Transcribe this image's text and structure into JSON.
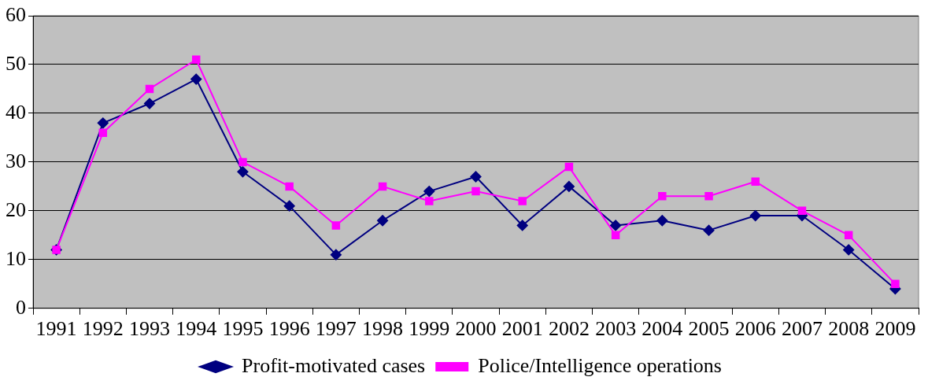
{
  "chart_data": {
    "type": "line",
    "categories": [
      "1991",
      "1992",
      "1993",
      "1994",
      "1995",
      "1996",
      "1997",
      "1998",
      "1999",
      "2000",
      "2001",
      "2002",
      "2003",
      "2004",
      "2005",
      "2006",
      "2007",
      "2008",
      "2009"
    ],
    "series": [
      {
        "name": "Profit-motivated cases",
        "color": "#000080",
        "marker": "diamond",
        "values": [
          12,
          38,
          42,
          47,
          28,
          21,
          11,
          18,
          24,
          27,
          17,
          25,
          17,
          18,
          16,
          19,
          19,
          12,
          4
        ]
      },
      {
        "name": "Police/Intelligence operations",
        "color": "#ff00ff",
        "marker": "square",
        "values": [
          12,
          36,
          45,
          51,
          30,
          25,
          17,
          25,
          22,
          24,
          22,
          29,
          15,
          23,
          23,
          26,
          20,
          15,
          5
        ]
      }
    ],
    "ylim": [
      0,
      60
    ],
    "yticks": [
      0,
      10,
      20,
      30,
      40,
      50,
      60
    ],
    "grid": "y",
    "legend": "bottom",
    "line_style": "solid"
  }
}
